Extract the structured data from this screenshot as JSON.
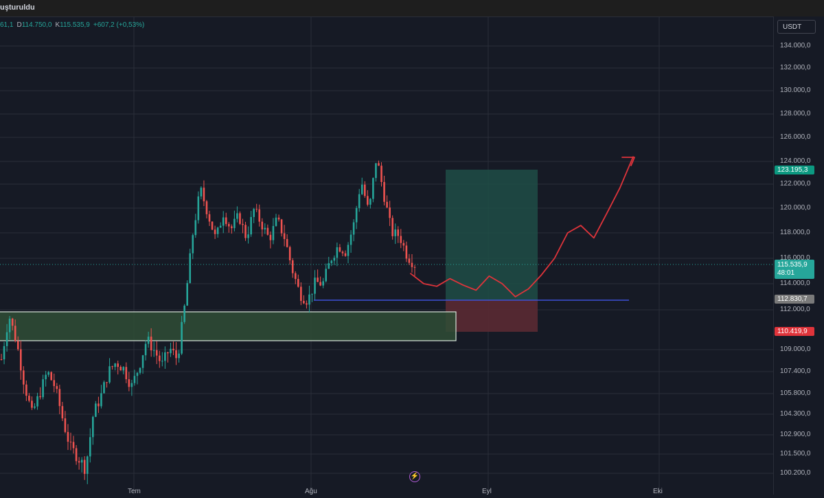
{
  "header": {
    "title": "uşturuldu"
  },
  "ohlc": {
    "open_partial": "61,1",
    "low_label": "D",
    "low_value": "114.750,0",
    "close_label": "K",
    "close_value": "115.535,9",
    "change": "+607,2 (+0,53%)"
  },
  "currency": "USDT",
  "price_axis": {
    "labels": [
      "134.000,0",
      "132.000,0",
      "130.000,0",
      "128.000,0",
      "126.000,0",
      "124.000,0",
      "122.000,0",
      "120.000,0",
      "118.000,0",
      "116.000,0",
      "114.000,0",
      "112.000,0",
      "109.000,0",
      "107.400,0",
      "105.800,0",
      "104.300,0",
      "102.900,0",
      "101.500,0",
      "100.200,0"
    ]
  },
  "price_tags": {
    "target": {
      "value": "123.195,3",
      "color": "#0c9981"
    },
    "current": {
      "value": "115.535,9",
      "countdown": "48:01",
      "color": "#26a69a"
    },
    "support": {
      "value": "112.830,7",
      "color": "#7a7a7a"
    },
    "stop": {
      "value": "110.419,9",
      "color": "#e0343b"
    }
  },
  "time_axis": {
    "labels": [
      "Tem",
      "Ağu",
      "Eyl",
      "Eki"
    ]
  },
  "colors": {
    "up": "#26a69a",
    "down": "#ef5350",
    "background": "#161a25",
    "grid": "#2a2e39",
    "support_line": "#3f51d6",
    "forecast": "#e0343b",
    "zone_fill": "#2f4d36",
    "zone_border": "#d9e6dc",
    "profit_zone": "#1f4d47",
    "loss_zone": "#5a2a33"
  },
  "icons": {
    "bottom_center": "lightning-icon"
  },
  "chart_data": {
    "type": "line",
    "title": "",
    "xlabel": "",
    "ylabel": "",
    "x_ticks": [
      "Tem",
      "Ağu",
      "Eyl",
      "Eki"
    ],
    "ylim": [
      100200,
      134000
    ],
    "series": [
      {
        "values": [
          108300,
          111600,
          109500,
          106500,
          104300,
          105800,
          107400,
          106300,
          104000,
          102000,
          101300,
          100500,
          104300,
          105600,
          107400,
          108100,
          107600,
          106300,
          107800,
          109800,
          108900,
          107900,
          109100,
          108300,
          112500,
          117900,
          121600,
          119500,
          117500,
          119600,
          118300,
          119400,
          117600,
          119900,
          118700,
          117500,
          119100,
          117600,
          115100,
          113200,
          112700,
          114100,
          114000,
          115900,
          117000,
          116500,
          118600,
          122300,
          119600,
          124400,
          121000,
          118000,
          117800,
          116200,
          115500
        ],
        "line_style": "close-price-approximation"
      },
      {
        "values": [
          114800,
          114000,
          113800,
          114400,
          113900,
          113500,
          114600,
          114000,
          113000,
          113600,
          114700,
          116000,
          118000,
          118600,
          117600,
          119600,
          121700,
          124400
        ],
        "line_style": "forecast"
      }
    ],
    "annotations": {
      "support_level": 112830.7,
      "demand_zone": [
        110000,
        112300
      ],
      "target": 123195.3,
      "stop": 110419.9
    },
    "grid": true
  }
}
